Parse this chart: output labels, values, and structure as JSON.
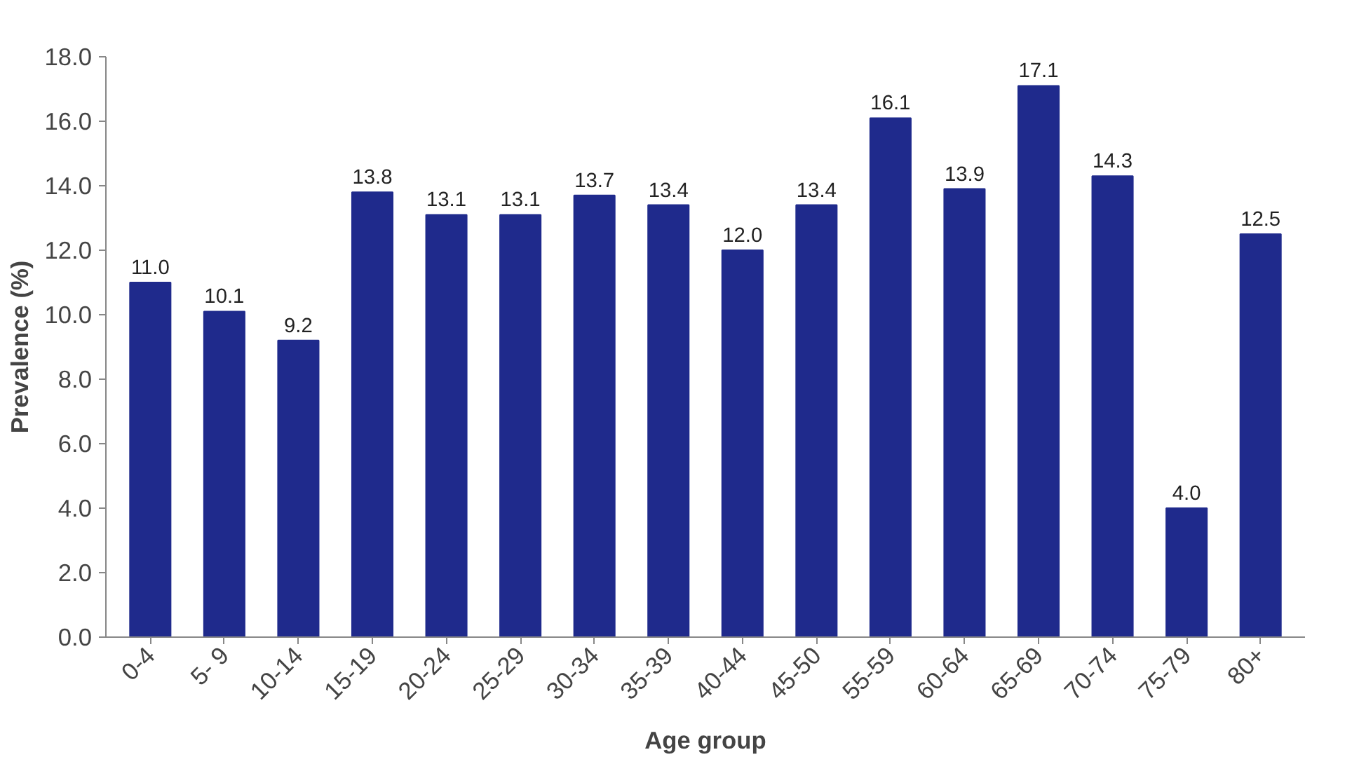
{
  "chart_data": {
    "type": "bar",
    "xlabel": "Age group",
    "ylabel": "Prevalence (%)",
    "categories": [
      "0-4",
      "5- 9",
      "10-14",
      "15-19",
      "20-24",
      "25-29",
      "30-34",
      "35-39",
      "40-44",
      "45-50",
      "55-59",
      "60-64",
      "65-69",
      "70-74",
      "75-79",
      "80+"
    ],
    "values": [
      11.0,
      10.1,
      9.2,
      13.8,
      13.1,
      13.1,
      13.7,
      13.4,
      12.0,
      13.4,
      16.1,
      13.9,
      17.1,
      14.3,
      4.0,
      12.5
    ],
    "value_labels": [
      "11.0",
      "10.1",
      "9.2",
      "13.8",
      "13.1",
      "13.1",
      "13.7",
      "13.4",
      "12.0",
      "13.4",
      "16.1",
      "13.9",
      "17.1",
      "14.3",
      "4.0",
      "12.5"
    ],
    "color": "#1f2a8c",
    "ylim": [
      0,
      18
    ],
    "yticks": [
      {
        "value": 0,
        "label": "0.0"
      },
      {
        "value": 2,
        "label": "2.0"
      },
      {
        "value": 4,
        "label": "4.0"
      },
      {
        "value": 6,
        "label": "6.0"
      },
      {
        "value": 8,
        "label": "8.0"
      },
      {
        "value": 10,
        "label": "10.0"
      },
      {
        "value": 12,
        "label": "12.0"
      },
      {
        "value": 14,
        "label": "14.0"
      },
      {
        "value": 16,
        "label": "16.0"
      },
      {
        "value": 18,
        "label": "18.0"
      }
    ],
    "grid": false
  }
}
